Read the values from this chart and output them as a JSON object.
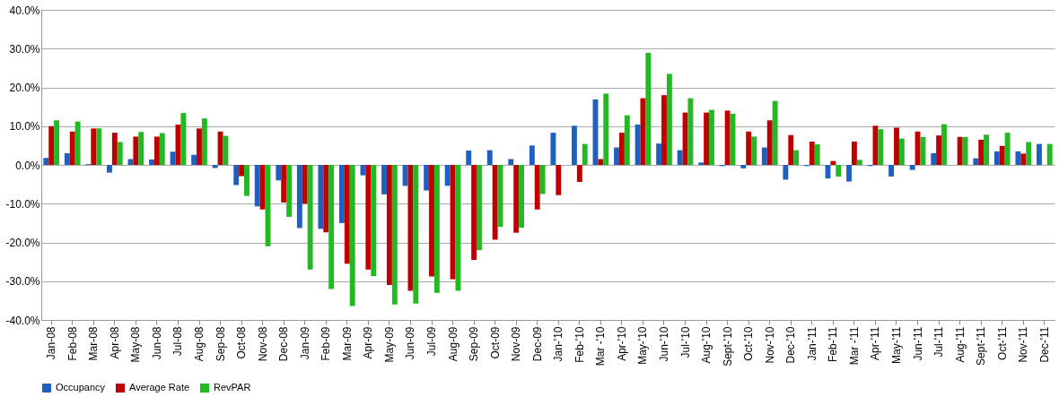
{
  "chart_data": {
    "type": "bar",
    "categories": [
      "Jan-08",
      "Feb-08",
      "Mar-08",
      "Apr-08",
      "May-08",
      "Jun-08",
      "Jul-08",
      "Aug-08",
      "Sep-08",
      "Oct-08",
      "Nov-08",
      "Dec-08",
      "Jan-09",
      "Feb-09",
      "Mar-09",
      "Apr-09",
      "May-09",
      "Jun-09",
      "Jul-09",
      "Aug-09",
      "Sep-09",
      "Oct-09",
      "Nov-09",
      "Dec-09",
      "Jan-'10",
      "Feb-'10",
      "Mar -'10",
      "Apr-'10",
      "May-'10",
      "Jun-'10",
      "Jul-'10",
      "Aug-'10",
      "Sept-'10",
      "Oct-'10",
      "Nov-'10",
      "Dec-'10",
      "Jan-'11",
      "Feb-'11",
      "Mar -'11",
      "Apr-'11",
      "May-'11",
      "Jun-'11",
      "Jul-'11",
      "Aug-'11",
      "Sept-'11",
      "Oct-'11",
      "Nov-'11",
      "Dec-'11"
    ],
    "series": [
      {
        "name": "Occupancy",
        "color": "#1f5fbf",
        "values": [
          1.8,
          3,
          0.2,
          -2,
          1.5,
          1.4,
          3.4,
          2.6,
          -0.8,
          -5.2,
          -10.7,
          -4,
          -16.3,
          -16.5,
          -15,
          -2.7,
          -7.6,
          -5.4,
          -6.6,
          -5.4,
          3.7,
          3.8,
          1.5,
          5,
          8.3,
          10.1,
          16.9,
          4.5,
          10.4,
          5.5,
          3.8,
          0.6,
          -0.3,
          -0.9,
          4.5,
          -3.8,
          -0.3,
          -3.5,
          -4.3,
          -0.3,
          -3,
          -1.3,
          3,
          0,
          1.7,
          3.5,
          3.5,
          5.4
        ]
      },
      {
        "name": "Average Rate",
        "color": "#c00000",
        "values": [
          10,
          8.6,
          9.4,
          8.3,
          7.3,
          7.3,
          10.4,
          9.4,
          8.6,
          -2.9,
          -11.5,
          -9.7,
          -10,
          -17.4,
          -25.5,
          -27,
          -31,
          -32.5,
          -28.8,
          -29.5,
          -24.5,
          -19.3,
          -17.5,
          -11.5,
          -7.8,
          -4.4,
          1.5,
          8.3,
          17.2,
          18,
          13.5,
          13.5,
          14,
          8.6,
          11.5,
          7.7,
          6,
          1,
          6,
          10.1,
          9.6,
          8.6,
          7.6,
          7.2,
          6.5,
          4.9,
          2.9,
          0
        ]
      },
      {
        "name": "RevPAR",
        "color": "#22b922",
        "values": [
          11.5,
          11.2,
          9.4,
          5.9,
          8.5,
          8.2,
          13.4,
          12,
          7.5,
          -8,
          -21,
          -13.4,
          -27,
          -32,
          -36.4,
          -28.7,
          -36,
          -35.8,
          -33,
          -32.5,
          -22,
          -16,
          -16.2,
          -7.5,
          null,
          5.4,
          18.4,
          12.8,
          28.9,
          23.5,
          17.2,
          14.2,
          13.2,
          7.3,
          16.5,
          3.8,
          5.3,
          -3,
          1.3,
          9.2,
          6.8,
          7.2,
          10.5,
          7.2,
          7.8,
          8.3,
          5.9,
          5.4
        ]
      }
    ],
    "ylim": [
      -40,
      40
    ],
    "yticks": [
      {
        "value": -40,
        "label": "-40.0%"
      },
      {
        "value": -30,
        "label": "-30.0%"
      },
      {
        "value": -20,
        "label": "-20.0%"
      },
      {
        "value": -10,
        "label": "-10.0%"
      },
      {
        "value": 0,
        "label": "0.0%"
      },
      {
        "value": 10,
        "label": "10.0%"
      },
      {
        "value": 20,
        "label": "20.0%"
      },
      {
        "value": 30,
        "label": "30.0%"
      },
      {
        "value": 40,
        "label": "40.0%"
      }
    ],
    "grid": "y",
    "legend": "bottom"
  }
}
